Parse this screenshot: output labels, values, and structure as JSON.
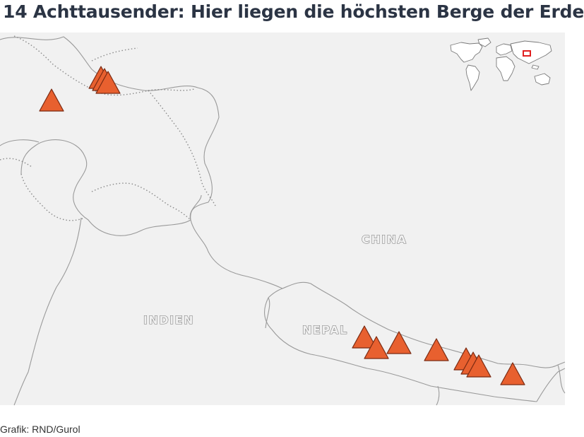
{
  "title": "14 Achttausender: Hier liegen die höchsten Berge der Erde",
  "source": "Grafik: RND/Gurol",
  "labels": {
    "china": "CHINA",
    "india": "INDIEN",
    "nepal": "NEPAL"
  },
  "colors": {
    "background": "#f1f1f1",
    "marker_fill": "#e8602f",
    "marker_stroke": "#7a2a12",
    "border": "#9a9a9a",
    "inset_highlight": "#e02020"
  },
  "marker_icon": "mountain-triangle-icon",
  "peaks_count": 14
}
